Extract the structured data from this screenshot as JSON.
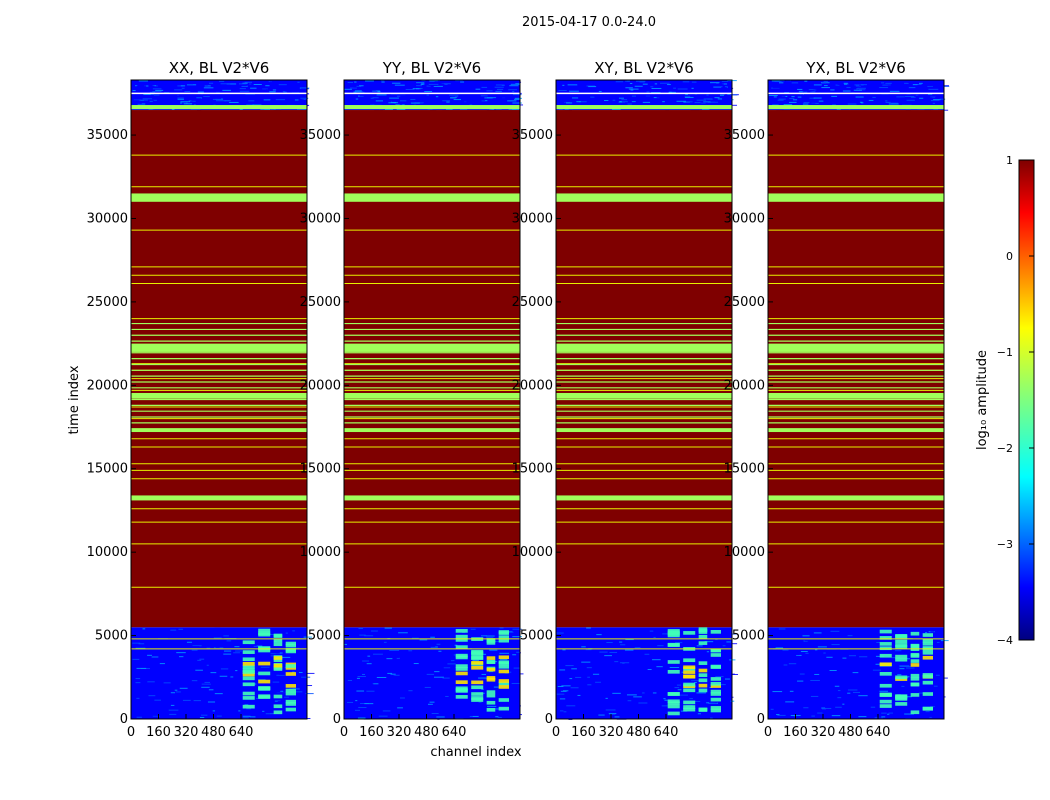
{
  "figure": {
    "suptitle": "2015-04-17 0.0-24.0",
    "xlabel": "channel index",
    "ylabel": "time index"
  },
  "colors": {
    "saturated": "#7f0000",
    "flag_line": "#e6f000",
    "flag_band": "#a0ff5a",
    "noise_a": "#0000ff",
    "noise_b": "#0050ff",
    "noise_c": "#00a0ff",
    "rfi_a": "#40ffb8",
    "rfi_b": "#ffe600",
    "white_line": "#ffffff"
  },
  "chart_data": {
    "type": "heatmap",
    "xlim": [
      0,
      1024
    ],
    "ylim": [
      0,
      38300
    ],
    "xticks": [
      0,
      160,
      320,
      480,
      640
    ],
    "xtick_labels": [
      "0",
      "160",
      "320",
      "480",
      "640"
    ],
    "yticks": [
      0,
      5000,
      10000,
      15000,
      20000,
      25000,
      30000,
      35000
    ],
    "ytick_labels": [
      "0",
      "5000",
      "10000",
      "15000",
      "20000",
      "25000",
      "30000",
      "35000"
    ],
    "panels": [
      {
        "title": "XX, BL V2*V6"
      },
      {
        "title": "YY, BL V2*V6"
      },
      {
        "title": "XY, BL V2*V6"
      },
      {
        "title": "YX, BL V2*V6"
      }
    ],
    "colorbar": {
      "label": "log₁₀ amplitude",
      "range": [
        -4,
        1
      ],
      "ticks": [
        1,
        0,
        -1,
        -2,
        -3,
        -4
      ],
      "tick_labels": [
        "1",
        "0",
        "−1",
        "−2",
        "−3",
        "−4"
      ],
      "colormap": "jet"
    },
    "saturated_region": [
      5500,
      36500
    ],
    "flag_lines": [
      10500,
      7900,
      26100,
      26600,
      27100,
      29300,
      31900,
      33800,
      24000,
      20400,
      20900,
      19700,
      21300,
      18000,
      18700,
      16800,
      16300,
      15300,
      14900,
      14400,
      12600,
      11800,
      4200,
      4800
    ],
    "flag_bands": [
      [
        31000,
        31500
      ],
      [
        36550,
        36800
      ],
      [
        22000,
        22500
      ],
      [
        19200,
        19500
      ],
      [
        17200,
        17400
      ],
      [
        13100,
        13400
      ]
    ],
    "rfi_channel_bands": [
      [
        650,
        720
      ],
      [
        740,
        810
      ],
      [
        830,
        880
      ],
      [
        900,
        960
      ]
    ]
  }
}
